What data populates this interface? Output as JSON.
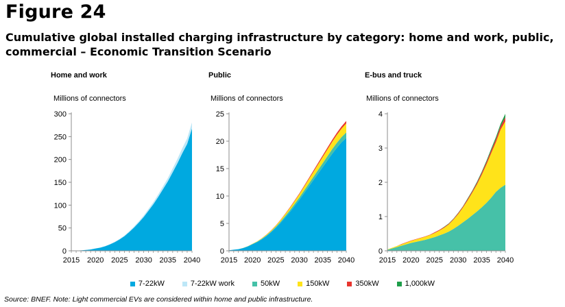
{
  "figure_label": "Figure 24",
  "title": "Cumulative global installed charging infrastructure by category: home and work, public, commercial – Economic Transition Scenario",
  "source": "Source: BNEF. Note: Light commercial EVs are considered within home and public infrastructure.",
  "legend": [
    {
      "label": "7-22kW",
      "color": "#00a9e0"
    },
    {
      "label": "7-22kW work",
      "color": "#bde7f7"
    },
    {
      "label": "50kW",
      "color": "#46c1a8"
    },
    {
      "label": "150kW",
      "color": "#ffe31a"
    },
    {
      "label": "350kW",
      "color": "#e8352e"
    },
    {
      "label": "1,000kW",
      "color": "#1e9e4a"
    }
  ],
  "chart_data": [
    {
      "type": "area",
      "stacked": true,
      "title": "Home and work",
      "ylabel": "Millions of connectors",
      "x": [
        2015,
        2016,
        2017,
        2018,
        2019,
        2020,
        2021,
        2022,
        2023,
        2024,
        2025,
        2026,
        2027,
        2028,
        2029,
        2030,
        2031,
        2032,
        2033,
        2034,
        2035,
        2036,
        2037,
        2038,
        2039,
        2040
      ],
      "xticks": [
        2015,
        2020,
        2025,
        2030,
        2035,
        2040
      ],
      "ylim": [
        0,
        300
      ],
      "yticks": [
        0,
        50,
        100,
        150,
        200,
        250,
        300
      ],
      "series": [
        {
          "name": "7-22kW",
          "color": "#00a9e0",
          "values": [
            0.3,
            0.6,
            1,
            1.8,
            3,
            5,
            7,
            10,
            14,
            19,
            25,
            32,
            41,
            51,
            62,
            74,
            88,
            102,
            118,
            135,
            152,
            172,
            192,
            214,
            234,
            268
          ]
        },
        {
          "name": "7-22kW work",
          "color": "#bde7f7",
          "values": [
            0,
            0,
            0,
            0,
            0.1,
            0.2,
            0.3,
            0.5,
            0.7,
            0.9,
            1.1,
            1.4,
            1.8,
            2.2,
            2.7,
            3.2,
            3.8,
            4.5,
            5.3,
            6.2,
            7.2,
            8.3,
            9.5,
            10.8,
            12,
            13
          ]
        }
      ]
    },
    {
      "type": "area",
      "stacked": true,
      "title": "Public",
      "ylabel": "Millions of connectors",
      "x": [
        2015,
        2016,
        2017,
        2018,
        2019,
        2020,
        2021,
        2022,
        2023,
        2024,
        2025,
        2026,
        2027,
        2028,
        2029,
        2030,
        2031,
        2032,
        2033,
        2034,
        2035,
        2036,
        2037,
        2038,
        2039,
        2040
      ],
      "xticks": [
        2015,
        2020,
        2025,
        2030,
        2035,
        2040
      ],
      "ylim": [
        0,
        25
      ],
      "yticks": [
        0,
        5,
        10,
        15,
        20,
        25
      ],
      "series": [
        {
          "name": "7-22kW",
          "color": "#00a9e0",
          "values": [
            0.1,
            0.2,
            0.3,
            0.5,
            0.8,
            1.2,
            1.6,
            2.1,
            2.7,
            3.4,
            4.2,
            5.1,
            6.1,
            7.1,
            8.2,
            9.3,
            10.5,
            11.7,
            12.9,
            14.1,
            15.3,
            16.5,
            17.7,
            18.8,
            19.8,
            20.6
          ]
        },
        {
          "name": "7-22kW work",
          "color": "#bde7f7",
          "values": [
            0,
            0,
            0,
            0,
            0,
            0,
            0,
            0,
            0,
            0,
            0,
            0,
            0,
            0,
            0,
            0,
            0,
            0,
            0,
            0,
            0,
            0,
            0,
            0,
            0,
            0
          ]
        },
        {
          "name": "50kW",
          "color": "#46c1a8",
          "values": [
            0,
            0,
            0,
            0.02,
            0.03,
            0.05,
            0.07,
            0.1,
            0.13,
            0.16,
            0.2,
            0.24,
            0.28,
            0.33,
            0.38,
            0.43,
            0.48,
            0.54,
            0.6,
            0.66,
            0.72,
            0.78,
            0.84,
            0.9,
            0.95,
            1.0
          ]
        },
        {
          "name": "150kW",
          "color": "#ffe31a",
          "values": [
            0,
            0,
            0,
            0.01,
            0.02,
            0.04,
            0.06,
            0.09,
            0.12,
            0.16,
            0.21,
            0.27,
            0.34,
            0.42,
            0.5,
            0.6,
            0.7,
            0.8,
            0.91,
            1.02,
            1.13,
            1.24,
            1.35,
            1.45,
            1.55,
            1.65
          ]
        },
        {
          "name": "350kW",
          "color": "#e8352e",
          "values": [
            0,
            0,
            0,
            0,
            0,
            0.01,
            0.01,
            0.02,
            0.03,
            0.04,
            0.05,
            0.06,
            0.08,
            0.1,
            0.12,
            0.14,
            0.17,
            0.2,
            0.23,
            0.26,
            0.29,
            0.32,
            0.35,
            0.38,
            0.41,
            0.44
          ]
        },
        {
          "name": "1,000kW",
          "color": "#1e9e4a",
          "values": [
            0,
            0,
            0,
            0,
            0,
            0,
            0,
            0,
            0,
            0,
            0,
            0,
            0,
            0,
            0,
            0,
            0,
            0,
            0,
            0,
            0,
            0,
            0,
            0,
            0,
            0
          ]
        }
      ]
    },
    {
      "type": "area",
      "stacked": true,
      "title": "E-bus and truck",
      "ylabel": "Millions of connectors",
      "x": [
        2015,
        2016,
        2017,
        2018,
        2019,
        2020,
        2021,
        2022,
        2023,
        2024,
        2025,
        2026,
        2027,
        2028,
        2029,
        2030,
        2031,
        2032,
        2033,
        2034,
        2035,
        2036,
        2037,
        2038,
        2039,
        2040
      ],
      "xticks": [
        2015,
        2020,
        2025,
        2030,
        2035,
        2040
      ],
      "ylim": [
        0,
        4
      ],
      "yticks": [
        0,
        1,
        2,
        3,
        4
      ],
      "series": [
        {
          "name": "50kW",
          "color": "#46c1a8",
          "values": [
            0.03,
            0.07,
            0.11,
            0.15,
            0.19,
            0.23,
            0.26,
            0.29,
            0.32,
            0.36,
            0.4,
            0.45,
            0.5,
            0.56,
            0.64,
            0.73,
            0.83,
            0.93,
            1.04,
            1.15,
            1.27,
            1.4,
            1.55,
            1.72,
            1.84,
            1.93
          ]
        },
        {
          "name": "150kW",
          "color": "#ffe31a",
          "values": [
            0.01,
            0.02,
            0.03,
            0.04,
            0.05,
            0.06,
            0.07,
            0.08,
            0.09,
            0.1,
            0.12,
            0.14,
            0.17,
            0.21,
            0.27,
            0.34,
            0.43,
            0.54,
            0.66,
            0.79,
            0.95,
            1.12,
            1.3,
            1.45,
            1.7,
            1.85
          ]
        },
        {
          "name": "350kW",
          "color": "#e8352e",
          "values": [
            0,
            0,
            0,
            0.01,
            0.01,
            0.01,
            0.01,
            0.01,
            0.01,
            0.01,
            0.02,
            0.02,
            0.02,
            0.02,
            0.02,
            0.03,
            0.03,
            0.04,
            0.04,
            0.05,
            0.06,
            0.07,
            0.08,
            0.09,
            0.1,
            0.12
          ]
        },
        {
          "name": "1,000kW",
          "color": "#1e9e4a",
          "values": [
            0,
            0,
            0,
            0,
            0,
            0,
            0,
            0,
            0,
            0,
            0,
            0,
            0.01,
            0.01,
            0.01,
            0.01,
            0.01,
            0.02,
            0.02,
            0.03,
            0.03,
            0.04,
            0.05,
            0.06,
            0.07,
            0.1
          ]
        }
      ]
    }
  ]
}
